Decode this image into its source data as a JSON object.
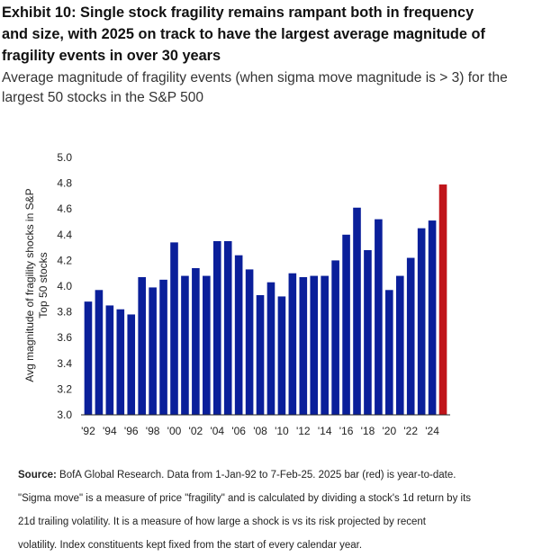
{
  "header": {
    "title": "Exhibit 10: Single stock fragility remains rampant both in frequency and size, with 2025 on track to have the largest average magnitude of fragility events in over 30 years",
    "subtitle": "Average magnitude of fragility events (when sigma move magnitude is > 3) for the largest 50 stocks in the S&P 500"
  },
  "chart_data": {
    "type": "bar",
    "ylabel_line1": "Avg magnitude of fragility shocks in S&P",
    "ylabel_line2": "Top 50 stocks",
    "ylim": [
      3.0,
      5.0
    ],
    "yticks": [
      "3.0",
      "3.2",
      "3.4",
      "3.6",
      "3.8",
      "4.0",
      "4.2",
      "4.4",
      "4.6",
      "4.8",
      "5.0"
    ],
    "grid": false,
    "legend": "none",
    "categories": [
      "1992",
      "1993",
      "1994",
      "1995",
      "1996",
      "1997",
      "1998",
      "1999",
      "2000",
      "2001",
      "2002",
      "2003",
      "2004",
      "2005",
      "2006",
      "2007",
      "2008",
      "2009",
      "2010",
      "2011",
      "2012",
      "2013",
      "2014",
      "2015",
      "2016",
      "2017",
      "2018",
      "2019",
      "2020",
      "2021",
      "2022",
      "2023",
      "2024",
      "2025"
    ],
    "xticks": [
      "'92",
      "'94",
      "'96",
      "'98",
      "'00",
      "'02",
      "'04",
      "'06",
      "'08",
      "'10",
      "'12",
      "'14",
      "'16",
      "'18",
      "'20",
      "'22",
      "'24"
    ],
    "values": [
      3.88,
      3.97,
      3.85,
      3.82,
      3.78,
      4.07,
      3.99,
      4.05,
      4.34,
      4.08,
      4.14,
      4.08,
      4.35,
      4.35,
      4.24,
      4.13,
      3.93,
      4.03,
      3.92,
      4.1,
      4.07,
      4.08,
      4.08,
      4.2,
      4.4,
      4.61,
      4.28,
      4.52,
      3.97,
      4.08,
      4.22,
      4.45,
      4.51,
      4.79
    ],
    "colors": {
      "bar": "#0a1f9a",
      "highlight": "#c0141a",
      "axis": "#222222"
    },
    "highlight_index": 33
  },
  "footnote": {
    "source_label": "Source:",
    "line1": " BofA Global Research. Data from 1-Jan-92 to 7-Feb-25. 2025 bar (red) is year-to-date.",
    "line2": "\"Sigma move\" is a measure of price \"fragility\" and is calculated by dividing a stock's 1d return by its",
    "line3": "21d trailing volatility. It is a measure of how large a shock is vs its risk projected by recent",
    "line4": "volatility. Index constituents kept fixed from the start of every calendar year."
  }
}
